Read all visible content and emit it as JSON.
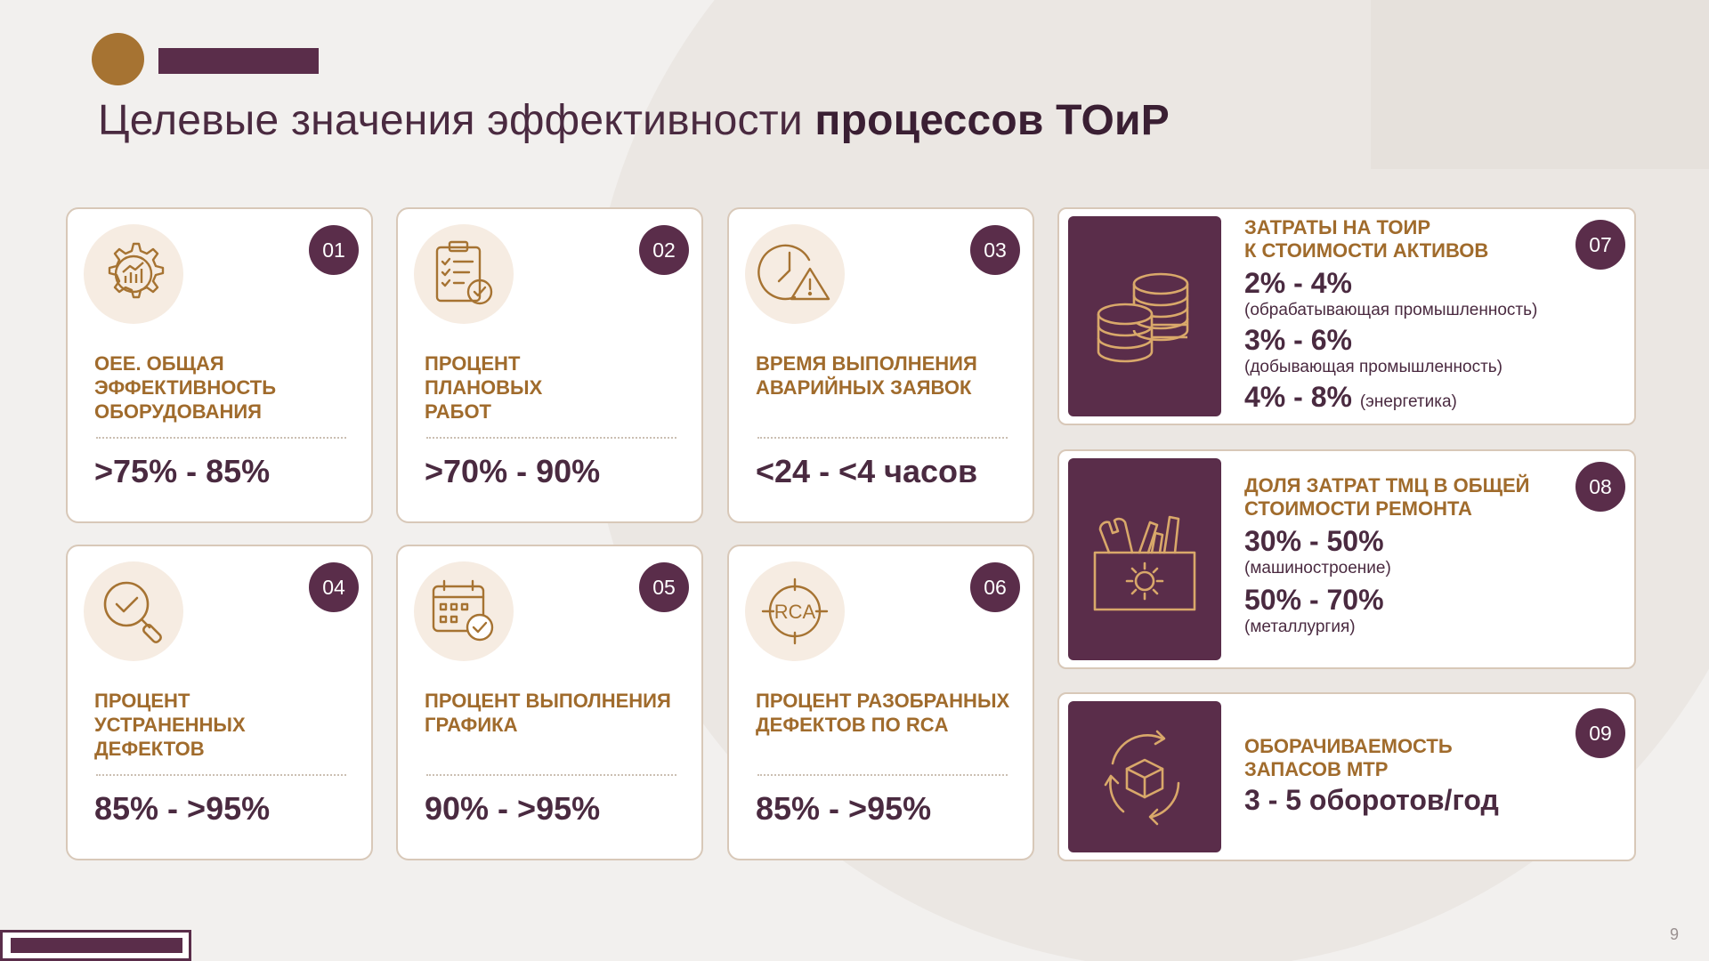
{
  "slide": {
    "title_regular": "Целевые значения эффективности ",
    "title_bold": "процессов ТОиР",
    "page_number": "9"
  },
  "colors": {
    "accent_dark": "#5a2d4a",
    "accent_gold": "#a67332",
    "label_gold": "#a06b2c"
  },
  "cards": [
    {
      "num": "01",
      "label": "OEE. Общая эффективность оборудования",
      "value": ">75% - 85%",
      "icon": "gear-chart-icon"
    },
    {
      "num": "02",
      "label": "Процент плановых работ",
      "value": ">70% - 90%",
      "icon": "clipboard-check-icon"
    },
    {
      "num": "03",
      "label": "Время выполнения аварийных заявок",
      "value": "<24 - <4 часов",
      "icon": "clock-warning-icon"
    },
    {
      "num": "04",
      "label": "Процент устраненных дефектов",
      "value": "85% - >95%",
      "icon": "magnifier-check-icon"
    },
    {
      "num": "05",
      "label": "Процент выполнения графика",
      "value": "90% - >95%",
      "icon": "calendar-check-icon"
    },
    {
      "num": "06",
      "label": "Процент разобранных дефектов по RCA",
      "value": "85% - >95%",
      "icon": "rca-target-icon",
      "icon_text": "RCA"
    }
  ],
  "wide_cards": {
    "c07": {
      "num": "07",
      "label_line1": "Затраты на ТОиР",
      "label_line2": "к стоимости активов",
      "v1": "2% - 4%",
      "n1": "(обрабатывающая промышленность)",
      "v2": "3% - 6%",
      "n2": "(добывающая промышленность)",
      "v3": "4% - 8%",
      "n3": "(энергетика)",
      "icon": "coins-stack-icon"
    },
    "c08": {
      "num": "08",
      "label": "Доля затрат ТМЦ в общей стоимости ремонта",
      "v1": "30% - 50%",
      "n1": "(машиностроение)",
      "v2": "50% - 70%",
      "n2": "(металлургия)",
      "icon": "toolbox-gear-icon"
    },
    "c09": {
      "num": "09",
      "label": "Оборачиваемость запасов МТР",
      "v1": "3 - 5 оборотов/год",
      "icon": "box-cycle-icon"
    }
  }
}
